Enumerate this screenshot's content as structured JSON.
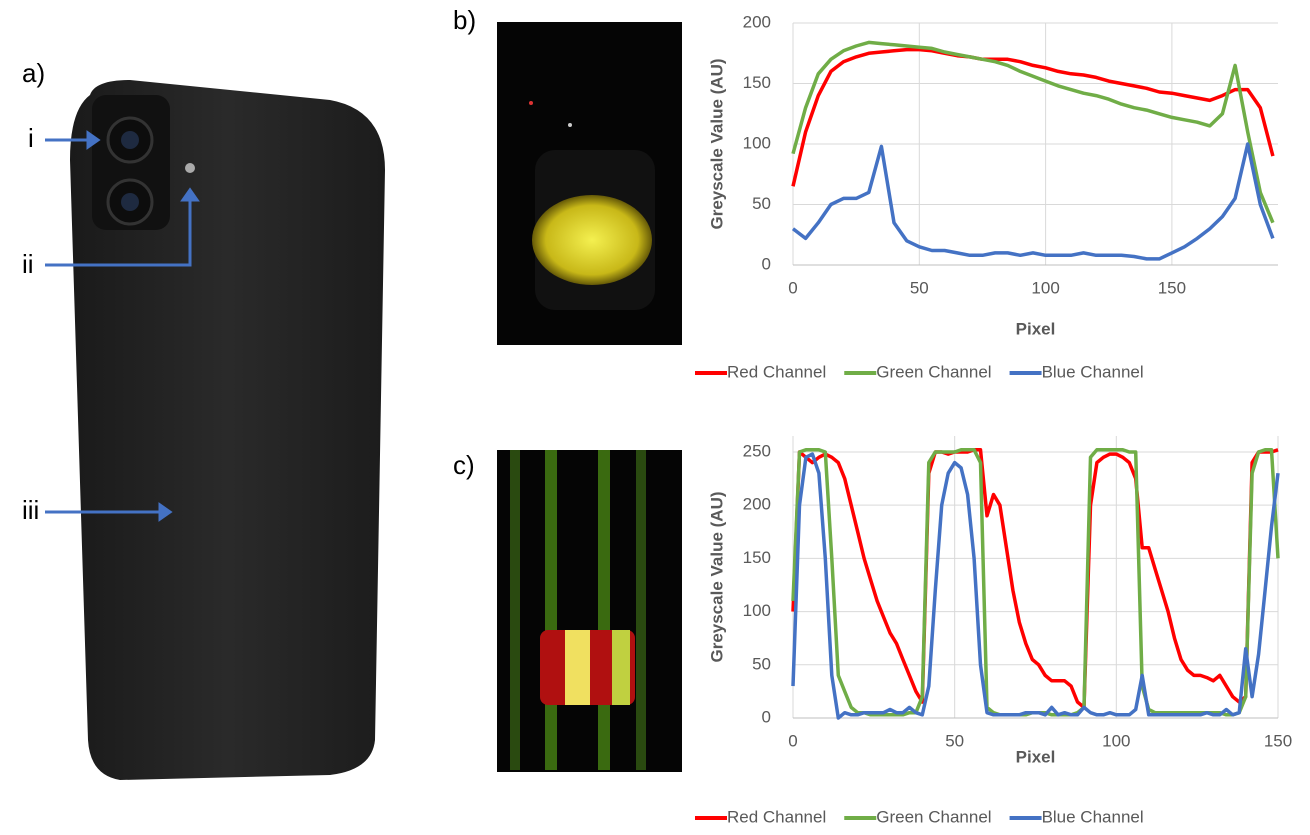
{
  "panel_labels": {
    "a": "a)",
    "b": "b)",
    "c": "c)"
  },
  "callouts": [
    "i",
    "ii",
    "iii"
  ],
  "chart_data": [
    {
      "type": "line",
      "x_label": "Pixel",
      "y_label": "Greyscale Value (AU)",
      "grid": true,
      "legend": "bottom",
      "xlim": [
        0,
        192
      ],
      "xticks": [
        0,
        50,
        100,
        150
      ],
      "ylim": [
        0,
        200
      ],
      "yticks": [
        0,
        50,
        100,
        150,
        200
      ],
      "x": [
        0,
        5,
        10,
        15,
        20,
        25,
        30,
        35,
        40,
        45,
        50,
        55,
        60,
        65,
        70,
        75,
        80,
        85,
        90,
        95,
        100,
        105,
        110,
        115,
        120,
        125,
        130,
        135,
        140,
        145,
        150,
        155,
        160,
        165,
        170,
        175,
        180,
        185,
        190
      ],
      "series": [
        {
          "name": "Red Channel",
          "color": "#ff0000",
          "values": [
            65,
            110,
            140,
            160,
            168,
            172,
            175,
            176,
            177,
            178,
            178,
            177,
            175,
            173,
            172,
            170,
            170,
            170,
            168,
            165,
            163,
            160,
            158,
            157,
            155,
            152,
            150,
            148,
            146,
            143,
            142,
            140,
            138,
            136,
            140,
            145,
            145,
            130,
            90
          ]
        },
        {
          "name": "Green Channel",
          "color": "#70ad47",
          "values": [
            92,
            130,
            158,
            170,
            177,
            181,
            184,
            183,
            182,
            181,
            180,
            179,
            176,
            174,
            172,
            170,
            168,
            165,
            160,
            156,
            152,
            148,
            145,
            142,
            140,
            137,
            133,
            130,
            128,
            125,
            122,
            120,
            118,
            115,
            125,
            165,
            110,
            60,
            35
          ]
        },
        {
          "name": "Blue Channel",
          "color": "#4472c4",
          "values": [
            30,
            22,
            35,
            50,
            55,
            55,
            60,
            98,
            35,
            20,
            15,
            12,
            12,
            10,
            8,
            8,
            10,
            10,
            8,
            10,
            8,
            8,
            8,
            10,
            8,
            8,
            8,
            7,
            5,
            5,
            10,
            15,
            22,
            30,
            40,
            55,
            100,
            50,
            22
          ]
        }
      ]
    },
    {
      "type": "line",
      "x_label": "Pixel",
      "y_label": "Greyscale Value (AU)",
      "grid": true,
      "legend": "bottom",
      "xlim": [
        0,
        150
      ],
      "xticks": [
        0,
        50,
        100,
        150
      ],
      "ylim": [
        0,
        265
      ],
      "yticks": [
        0,
        50,
        100,
        150,
        200,
        250
      ],
      "x": [
        0,
        2,
        4,
        6,
        8,
        10,
        12,
        14,
        16,
        18,
        20,
        22,
        24,
        26,
        28,
        30,
        32,
        34,
        36,
        38,
        40,
        42,
        44,
        46,
        48,
        50,
        52,
        54,
        56,
        58,
        60,
        62,
        64,
        66,
        68,
        70,
        72,
        74,
        76,
        78,
        80,
        82,
        84,
        86,
        88,
        90,
        92,
        94,
        96,
        98,
        100,
        102,
        104,
        106,
        108,
        110,
        112,
        114,
        116,
        118,
        120,
        122,
        124,
        126,
        128,
        130,
        132,
        134,
        136,
        138,
        140,
        142,
        144,
        146,
        148,
        150
      ],
      "series": [
        {
          "name": "Red Channel",
          "color": "#ff0000",
          "values": [
            100,
            250,
            245,
            240,
            245,
            248,
            245,
            240,
            225,
            200,
            175,
            150,
            130,
            110,
            95,
            80,
            70,
            55,
            40,
            25,
            15,
            230,
            250,
            250,
            248,
            250,
            250,
            250,
            252,
            252,
            190,
            210,
            200,
            160,
            120,
            90,
            70,
            55,
            50,
            40,
            35,
            35,
            35,
            30,
            15,
            10,
            200,
            240,
            245,
            248,
            248,
            245,
            240,
            225,
            160,
            160,
            140,
            120,
            100,
            75,
            55,
            45,
            40,
            40,
            38,
            35,
            40,
            30,
            20,
            15,
            20,
            240,
            250,
            250,
            250,
            252
          ]
        },
        {
          "name": "Green Channel",
          "color": "#70ad47",
          "values": [
            110,
            250,
            252,
            252,
            252,
            250,
            150,
            40,
            25,
            10,
            5,
            5,
            3,
            3,
            3,
            3,
            3,
            3,
            5,
            5,
            20,
            240,
            250,
            250,
            250,
            250,
            252,
            252,
            252,
            240,
            10,
            5,
            3,
            3,
            3,
            3,
            3,
            5,
            5,
            5,
            3,
            3,
            3,
            3,
            5,
            10,
            245,
            252,
            252,
            252,
            252,
            252,
            250,
            250,
            30,
            8,
            5,
            5,
            5,
            5,
            5,
            5,
            5,
            5,
            5,
            5,
            5,
            3,
            3,
            5,
            20,
            230,
            250,
            252,
            252,
            150
          ]
        },
        {
          "name": "Blue Channel",
          "color": "#4472c4",
          "values": [
            30,
            200,
            245,
            248,
            230,
            150,
            40,
            0,
            5,
            3,
            3,
            5,
            5,
            5,
            5,
            8,
            5,
            5,
            10,
            5,
            3,
            30,
            120,
            200,
            230,
            240,
            235,
            210,
            150,
            50,
            5,
            3,
            3,
            3,
            3,
            3,
            5,
            5,
            5,
            3,
            10,
            3,
            5,
            3,
            3,
            10,
            5,
            3,
            3,
            5,
            3,
            3,
            3,
            8,
            40,
            3,
            3,
            3,
            3,
            3,
            3,
            3,
            3,
            3,
            5,
            3,
            3,
            8,
            3,
            5,
            65,
            20,
            60,
            120,
            180,
            230
          ]
        }
      ]
    }
  ]
}
